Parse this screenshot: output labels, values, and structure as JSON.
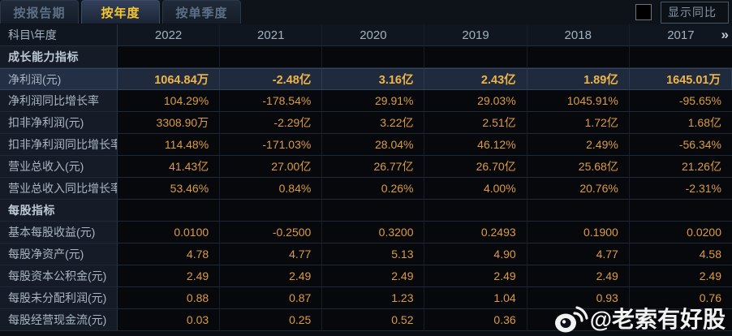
{
  "tabs": [
    {
      "label": "按报告期",
      "active": false
    },
    {
      "label": "按年度",
      "active": true
    },
    {
      "label": "按单季度",
      "active": false
    }
  ],
  "controls": {
    "show_yoy_label": "显示同比",
    "show_yoy_checked": false
  },
  "table": {
    "corner_label": "科目\\年度",
    "years": [
      "2022",
      "2021",
      "2020",
      "2019",
      "2018",
      "2017"
    ],
    "more_icon": "»",
    "sections": [
      "成长能力指标",
      "每股指标"
    ],
    "rows": [
      {
        "type": "section",
        "label": "成长能力指标",
        "values": [
          "",
          "",
          "",
          "",
          "",
          ""
        ]
      },
      {
        "type": "data",
        "label": "净利润(元)",
        "highlight": true,
        "values": [
          "1064.84万",
          "-2.48亿",
          "3.16亿",
          "2.43亿",
          "1.89亿",
          "1645.01万"
        ]
      },
      {
        "type": "data",
        "label": "净利润同比增长率",
        "values": [
          "104.29%",
          "-178.54%",
          "29.91%",
          "29.03%",
          "1045.91%",
          "-95.65%"
        ]
      },
      {
        "type": "data",
        "label": "扣非净利润(元)",
        "values": [
          "3308.90万",
          "-2.29亿",
          "3.22亿",
          "2.51亿",
          "1.72亿",
          "1.68亿"
        ]
      },
      {
        "type": "data",
        "label": "扣非净利润同比增长率",
        "values": [
          "114.48%",
          "-171.03%",
          "28.04%",
          "46.12%",
          "2.49%",
          "-56.34%"
        ]
      },
      {
        "type": "data",
        "label": "营业总收入(元)",
        "values": [
          "41.43亿",
          "27.00亿",
          "26.77亿",
          "26.70亿",
          "25.68亿",
          "21.26亿"
        ]
      },
      {
        "type": "data",
        "label": "营业总收入同比增长率",
        "values": [
          "53.46%",
          "0.84%",
          "0.26%",
          "4.00%",
          "20.76%",
          "-2.31%"
        ]
      },
      {
        "type": "section",
        "label": "每股指标",
        "values": [
          "",
          "",
          "",
          "",
          "",
          ""
        ]
      },
      {
        "type": "data",
        "label": "基本每股收益(元)",
        "values": [
          "0.0100",
          "-0.2500",
          "0.3200",
          "0.2493",
          "0.1900",
          "0.0200"
        ]
      },
      {
        "type": "data",
        "label": "每股净资产(元)",
        "values": [
          "4.78",
          "4.77",
          "5.13",
          "4.90",
          "4.77",
          "4.58"
        ]
      },
      {
        "type": "data",
        "label": "每股资本公积金(元)",
        "values": [
          "2.49",
          "2.49",
          "2.49",
          "2.49",
          "2.49",
          "2.49"
        ]
      },
      {
        "type": "data",
        "label": "每股未分配利润(元)",
        "values": [
          "0.88",
          "0.87",
          "1.23",
          "1.04",
          "0.93",
          "0.76"
        ]
      },
      {
        "type": "data",
        "label": "每股经营现金流(元)",
        "values": [
          "0.03",
          "0.25",
          "0.52",
          "0.36",
          "",
          ""
        ]
      }
    ]
  },
  "watermark": {
    "handle": "@老索有好股",
    "icon": "weibo-icon"
  },
  "colors": {
    "accent_tab": "#f6c72e",
    "value_orange": "#dd9c40",
    "highlight_value": "#f0b44a",
    "highlight_row_bg": "#1f2b3d",
    "label_bg": "#151c27",
    "value_bg": "#06080c"
  }
}
